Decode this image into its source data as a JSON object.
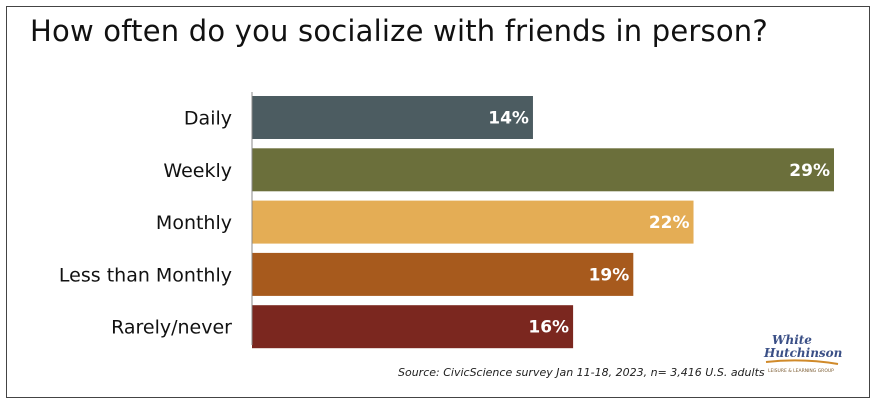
{
  "title": "How often do you socialize with friends in person?",
  "source": "Source: CivicScience survey Jan 11-18, 2023, n= 3,416 U.S. adults",
  "logo": {
    "line1": "White",
    "line2": "Hutchinson",
    "tag": "LEISURE & LEARNING GROUP"
  },
  "chart_data": {
    "type": "bar",
    "orientation": "horizontal",
    "title": "How often do you socialize with friends in person?",
    "categories": [
      "Daily",
      "Weekly",
      "Monthly",
      "Less than Monthly",
      "Rarely/never"
    ],
    "values": [
      14,
      29,
      22,
      19,
      16
    ],
    "value_labels": [
      "14%",
      "29%",
      "22%",
      "19%",
      "16%"
    ],
    "colors": [
      "#4c5c61",
      "#6b6f3b",
      "#e4ad55",
      "#a75a1d",
      "#7b271f"
    ],
    "xlim": [
      0,
      29
    ],
    "grid": false
  }
}
